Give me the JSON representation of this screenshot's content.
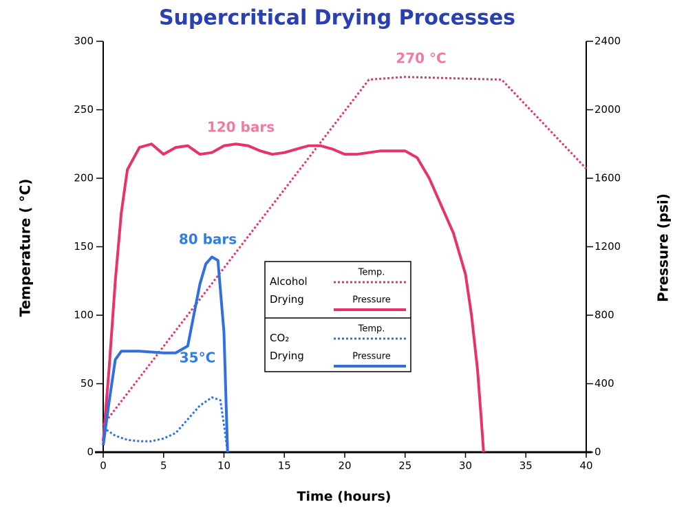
{
  "chart_data": {
    "type": "line",
    "title": "Supercritical Drying Processes",
    "x_label": "Time (hours)",
    "y_label": "Temperature ( °C)",
    "y2_label": "Pressure (psi)",
    "xlim": [
      0,
      40
    ],
    "xticks": [
      0,
      5,
      10,
      15,
      20,
      25,
      30,
      35,
      40
    ],
    "ylim": [
      0,
      300
    ],
    "yticks": [
      0,
      50,
      100,
      150,
      200,
      250,
      300
    ],
    "y2lim": [
      0,
      2400
    ],
    "y2ticks": [
      0,
      400,
      800,
      1200,
      1600,
      2000,
      2400
    ],
    "series_groups": [
      {
        "name": "Alcohol Drying",
        "series": [
          {
            "name": "Temp.",
            "color": "#e8336a",
            "line_style": "dotted",
            "axis": "y",
            "x": [
              0,
              22,
              25,
              33,
              40
            ],
            "values": [
              20,
              272,
              274,
              272,
              207
            ]
          },
          {
            "name": "Pressure",
            "color": "#e8336a",
            "line_style": "solid",
            "axis": "y2",
            "x": [
              0,
              0.5,
              1,
              1.5,
              2,
              3,
              4,
              5,
              6,
              7,
              8,
              9,
              10,
              11,
              12,
              13,
              14,
              15,
              16,
              17,
              18,
              19,
              20,
              21,
              22,
              23,
              24,
              25,
              26,
              27,
              28,
              29,
              30,
              30.5,
              31,
              31.3,
              31.5
            ],
            "values": [
              64,
              500,
              1000,
              1400,
              1650,
              1780,
              1800,
              1740,
              1780,
              1790,
              1740,
              1750,
              1790,
              1800,
              1790,
              1760,
              1740,
              1750,
              1770,
              1790,
              1790,
              1770,
              1740,
              1740,
              1750,
              1760,
              1760,
              1760,
              1720,
              1600,
              1440,
              1280,
              1040,
              800,
              480,
              200,
              0
            ]
          }
        ]
      },
      {
        "name": "CO₂ Drying",
        "series": [
          {
            "name": "Temp.",
            "color": "#2f6fe0",
            "line_style": "dotted",
            "axis": "y",
            "x": [
              0,
              1,
              2,
              3,
              4,
              5,
              6,
              7,
              8,
              9,
              9.7,
              10,
              10.3
            ],
            "values": [
              18,
              12,
              9,
              8,
              8,
              10,
              14,
              24,
              34,
              40,
              38,
              20,
              0
            ]
          },
          {
            "name": "Pressure",
            "color": "#2f6fe0",
            "line_style": "solid",
            "axis": "y2",
            "x": [
              0,
              0.5,
              1,
              1.5,
              3,
              5,
              6,
              7,
              7.5,
              8,
              8.5,
              9,
              9.5,
              10,
              10.3
            ],
            "values": [
              40,
              300,
              540,
              590,
              590,
              580,
              580,
              620,
              800,
              980,
              1100,
              1140,
              1120,
              700,
              0
            ]
          }
        ]
      }
    ],
    "annotations": [
      {
        "text": "270 °C",
        "color": "#f07aa0"
      },
      {
        "text": "120 bars",
        "color": "#f07aa0"
      },
      {
        "text": "80 bars",
        "color": "#2f7de8"
      },
      {
        "text": "35°C",
        "color": "#2f7de8"
      }
    ]
  }
}
